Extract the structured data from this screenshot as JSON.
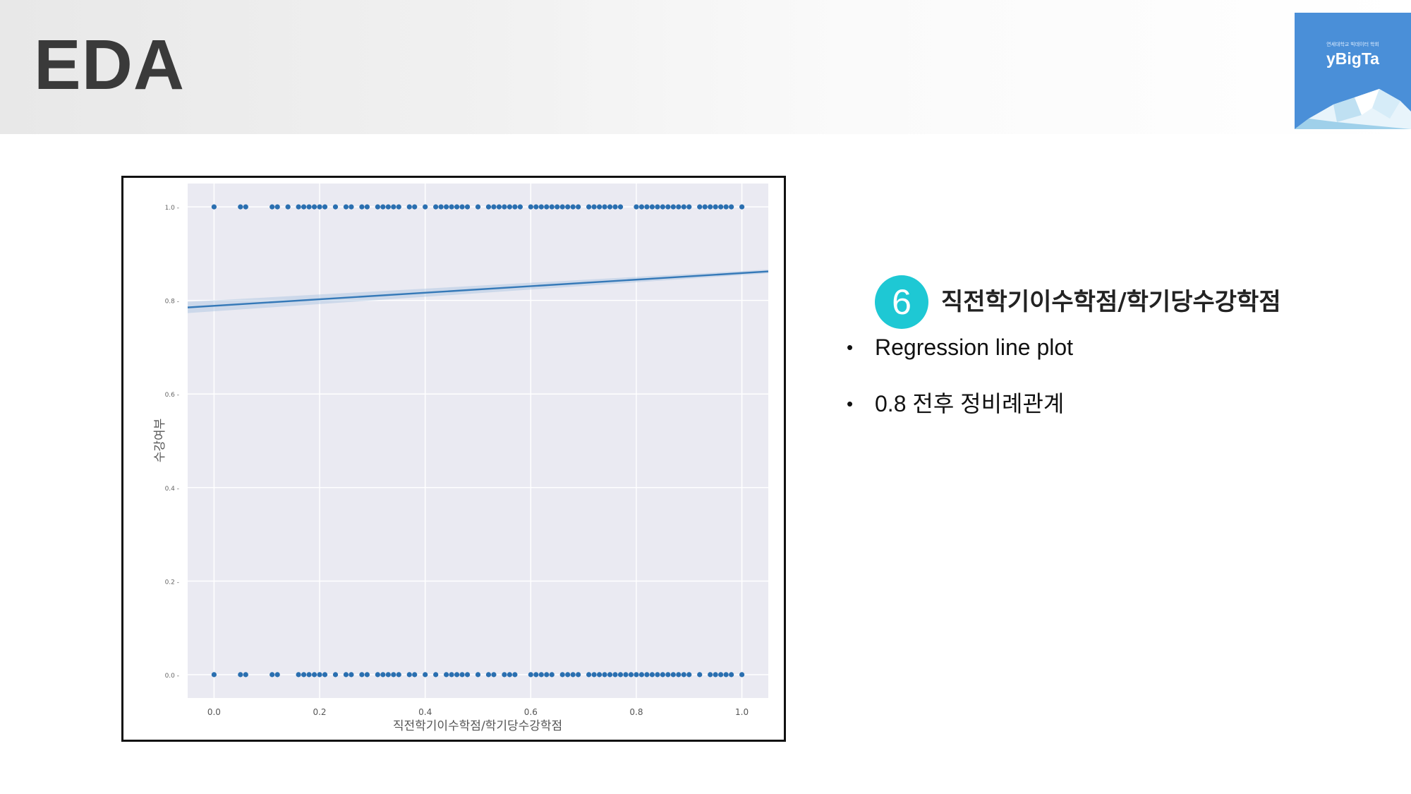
{
  "slide": {
    "title": "EDA",
    "logo": {
      "subtitle": "연세대학교 빅데이터 학회",
      "name": "yBigTa"
    },
    "section": {
      "number": "6",
      "title": "직전학기이수학점/학기당수강학점"
    },
    "bullets": [
      {
        "marker": "•",
        "text": "Regression line plot"
      },
      {
        "marker": "•",
        "text": "0.8 전후 정비례관계"
      }
    ]
  },
  "colors": {
    "point": "#2a6fb0",
    "line": "#3579b8",
    "band": "#a9c4e0",
    "plot_bg": "#eaeaf2",
    "badge": "#1ec8d4",
    "logo_bg": "#4a8fd8"
  },
  "chart_data": {
    "type": "scatter",
    "xlabel": "직전학기이수학점/학기당수강학점",
    "ylabel": "수강여부",
    "xlim": [
      -0.05,
      1.05
    ],
    "ylim": [
      -0.05,
      1.05
    ],
    "xticks": [
      "0.0",
      "0.2",
      "0.4",
      "0.6",
      "0.8",
      "1.0"
    ],
    "yticks": [
      "0.0",
      "0.2",
      "0.4",
      "0.6",
      "0.8",
      "1.0"
    ],
    "grid": true,
    "series": [
      {
        "y": 1,
        "x": [
          0.0,
          0.05,
          0.06,
          0.11,
          0.12,
          0.14,
          0.16,
          0.17,
          0.18,
          0.19,
          0.2,
          0.21,
          0.23,
          0.25,
          0.26,
          0.28,
          0.29,
          0.31,
          0.32,
          0.33,
          0.34,
          0.35,
          0.37,
          0.38,
          0.4,
          0.42,
          0.43,
          0.44,
          0.45,
          0.46,
          0.47,
          0.48,
          0.5,
          0.52,
          0.53,
          0.54,
          0.55,
          0.56,
          0.57,
          0.58,
          0.6,
          0.61,
          0.62,
          0.63,
          0.64,
          0.65,
          0.66,
          0.67,
          0.68,
          0.69,
          0.71,
          0.72,
          0.73,
          0.74,
          0.75,
          0.76,
          0.77,
          0.8,
          0.81,
          0.82,
          0.83,
          0.84,
          0.85,
          0.86,
          0.87,
          0.88,
          0.89,
          0.9,
          0.92,
          0.93,
          0.94,
          0.95,
          0.96,
          0.97,
          0.98,
          1.0
        ]
      },
      {
        "y": 0,
        "x": [
          0.0,
          0.05,
          0.06,
          0.11,
          0.12,
          0.16,
          0.17,
          0.18,
          0.19,
          0.2,
          0.21,
          0.23,
          0.25,
          0.26,
          0.28,
          0.29,
          0.31,
          0.32,
          0.33,
          0.34,
          0.35,
          0.37,
          0.38,
          0.4,
          0.42,
          0.44,
          0.45,
          0.46,
          0.47,
          0.48,
          0.5,
          0.52,
          0.53,
          0.55,
          0.56,
          0.57,
          0.6,
          0.61,
          0.62,
          0.63,
          0.64,
          0.66,
          0.67,
          0.68,
          0.69,
          0.71,
          0.72,
          0.73,
          0.74,
          0.75,
          0.76,
          0.77,
          0.78,
          0.79,
          0.8,
          0.81,
          0.82,
          0.83,
          0.84,
          0.85,
          0.86,
          0.87,
          0.88,
          0.89,
          0.9,
          0.92,
          0.94,
          0.95,
          0.96,
          0.97,
          0.98,
          1.0
        ]
      }
    ],
    "regression": {
      "x": [
        -0.05,
        1.05
      ],
      "y": [
        0.785,
        0.862
      ],
      "ci_width": [
        0.012,
        0.004
      ]
    }
  }
}
